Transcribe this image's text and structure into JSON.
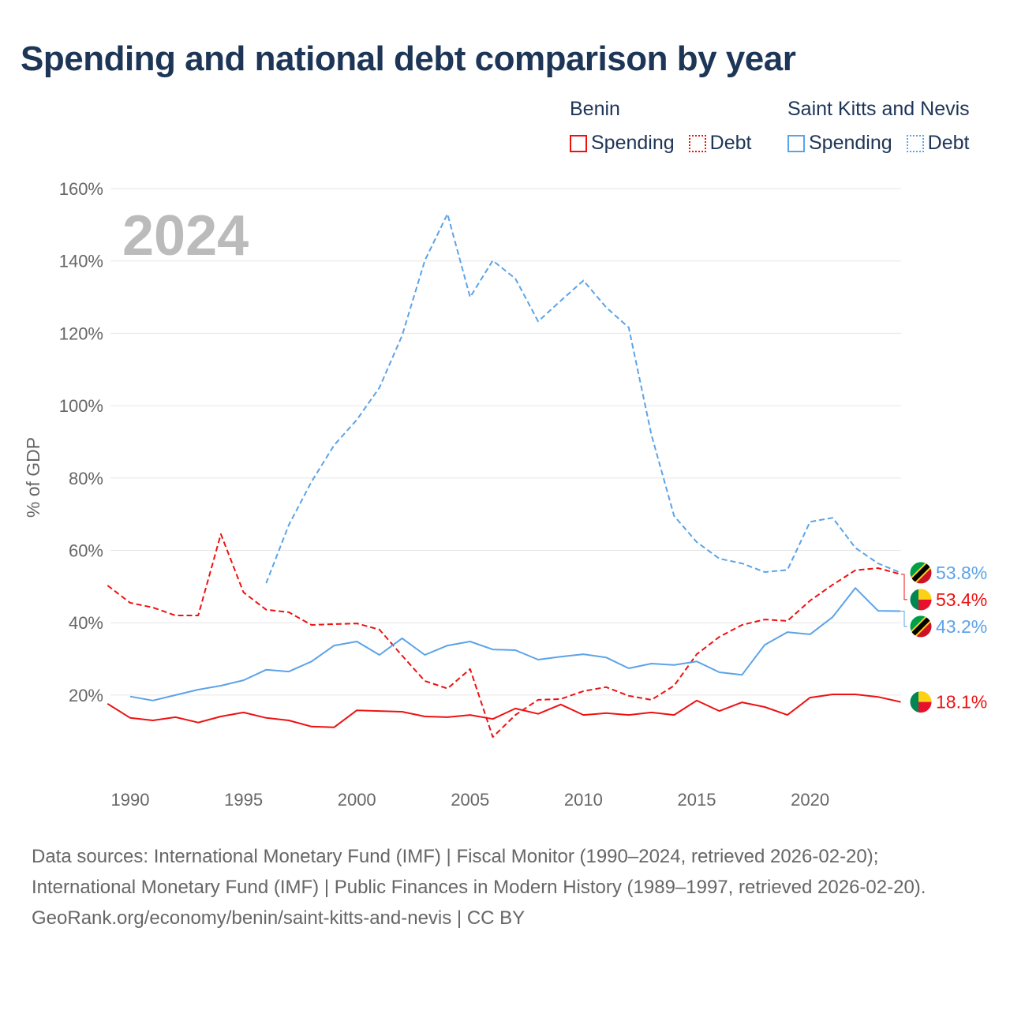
{
  "title": "Spending and national debt comparison by year",
  "legend": [
    {
      "country": "Benin",
      "color": "#ee1111",
      "items": [
        "Spending",
        "Debt"
      ]
    },
    {
      "country": "Saint Kitts and Nevis",
      "color": "#5ba3e8",
      "items": [
        "Spending",
        "Debt"
      ]
    }
  ],
  "year_label": "2024",
  "chart_data": {
    "type": "line",
    "title": "Spending and national debt comparison by year",
    "ylabel": "% of GDP",
    "xlabel": "",
    "xlim": [
      1989,
      2024
    ],
    "ylim": [
      0,
      160
    ],
    "x_ticks": [
      "1990",
      "1995",
      "2000",
      "2005",
      "2010",
      "2015",
      "2020"
    ],
    "y_ticks": [
      "20%",
      "40%",
      "60%",
      "80%",
      "100%",
      "120%",
      "140%",
      "160%"
    ],
    "grid": true,
    "series": [
      {
        "name": "Benin Spending",
        "color": "#ee1111",
        "dash": false,
        "start": 1989,
        "values": [
          17.6,
          13.7,
          13.0,
          13.9,
          12.4,
          14.1,
          15.2,
          13.7,
          13.0,
          11.3,
          11.1,
          15.8,
          15.6,
          15.4,
          14.1,
          13.9,
          14.5,
          13.4,
          16.3,
          14.8,
          17.4,
          14.5,
          15.0,
          14.5,
          15.2,
          14.5,
          18.5,
          15.6,
          18.0,
          16.7,
          14.5,
          19.3,
          20.2,
          20.2,
          19.5,
          18.1
        ],
        "end_label": "18.1%",
        "flag": "benin"
      },
      {
        "name": "Benin Debt",
        "color": "#ee1111",
        "dash": true,
        "start": 1989,
        "values": [
          50.3,
          45.5,
          44.2,
          42.0,
          42.0,
          64.5,
          48.4,
          43.6,
          42.9,
          39.4,
          39.6,
          39.8,
          38.1,
          30.9,
          23.9,
          21.8,
          27.2,
          8.4,
          14.5,
          18.7,
          18.9,
          21.1,
          22.2,
          19.8,
          18.7,
          22.6,
          31.3,
          36.1,
          39.4,
          40.9,
          40.5,
          46.1,
          50.5,
          54.5,
          55.1,
          53.4
        ],
        "end_label": "53.4%",
        "flag": "benin"
      },
      {
        "name": "Saint Kitts and Nevis Spending",
        "color": "#5ba3e8",
        "dash": false,
        "start": 1990,
        "values": [
          19.6,
          18.5,
          20.0,
          21.5,
          22.6,
          24.1,
          27.0,
          26.5,
          29.3,
          33.7,
          34.8,
          31.1,
          35.7,
          31.1,
          33.7,
          34.8,
          32.6,
          32.4,
          29.8,
          30.6,
          31.3,
          30.4,
          27.4,
          28.7,
          28.3,
          29.3,
          26.3,
          25.6,
          33.9,
          37.4,
          36.8,
          41.6,
          49.6,
          43.3,
          43.2
        ],
        "end_label": "43.2%",
        "flag": "skn"
      },
      {
        "name": "Saint Kitts and Nevis Debt",
        "color": "#5ba3e8",
        "dash": true,
        "start": 1996,
        "values": [
          50.9,
          67.0,
          79.0,
          89.1,
          96.1,
          105.0,
          119.4,
          140.1,
          153.0,
          130.0,
          140.1,
          135.1,
          123.3,
          129.0,
          134.6,
          127.2,
          121.6,
          91.9,
          69.5,
          62.3,
          57.7,
          56.4,
          54.0,
          54.6,
          67.9,
          69.0,
          60.7,
          56.4,
          53.8
        ],
        "end_label": "53.8%",
        "flag": "skn"
      }
    ]
  },
  "sources": {
    "line1": "Data sources: International Monetary Fund (IMF) | Fiscal Monitor (1990–2024, retrieved 2026-02-20); International Monetary Fund (IMF) | Public Finances in Modern History (1989–1997, retrieved 2026-02-20).",
    "line2": "GeoRank.org/economy/benin/saint-kitts-and-nevis | CC BY"
  }
}
